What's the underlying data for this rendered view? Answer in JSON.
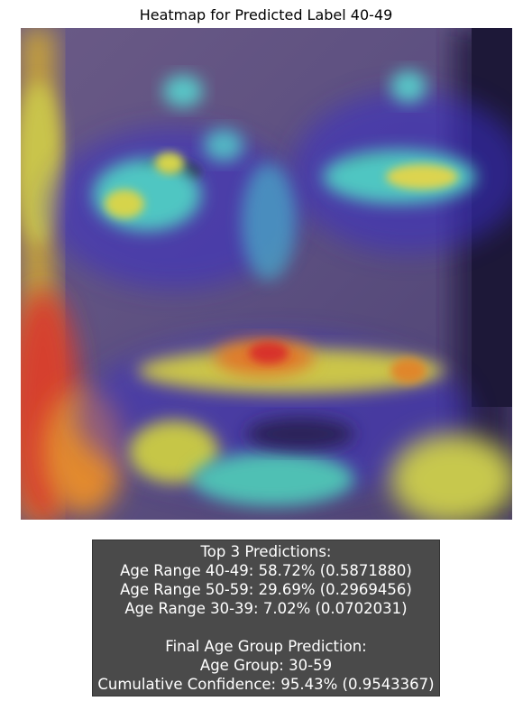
{
  "figure": {
    "title": "Heatmap for Predicted Label 40-49",
    "image": {
      "subject": "face-photo-with-gradcam-heatmap-overlay",
      "colormap": "jet",
      "colors": {
        "face_base": "#5a4e7e",
        "overlay_blue": "#3b2fd6",
        "overlay_cyan": "#4fc6c2",
        "overlay_yellow": "#d8d54a",
        "overlay_orange": "#e0862c",
        "overlay_red": "#d8302a"
      }
    }
  },
  "predictions": {
    "header": "Top 3 Predictions:",
    "items": [
      "Age Range 40-49: 58.72% (0.5871880)",
      "Age Range 50-59: 29.69% (0.2969456)",
      "Age Range 30-39: 7.02% (0.0702031)"
    ],
    "final_header": "Final Age Group Prediction:",
    "age_group": "Age Group: 30-59",
    "cumulative": "Cumulative Confidence: 95.43% (0.9543367)",
    "colors": {
      "box_background": "#4a4a4a",
      "text": "#ffffff"
    }
  }
}
